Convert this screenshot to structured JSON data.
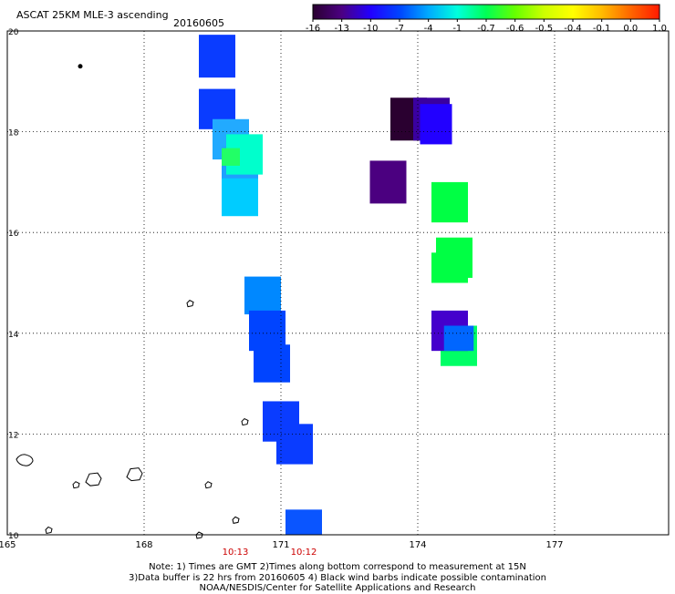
{
  "header": {
    "product_title": "ASCAT 25KM MLE-3 ascending",
    "date": "20160605"
  },
  "colorbar": {
    "colors": [
      "#2a0030",
      "#4b0082",
      "#2200ff",
      "#0044ff",
      "#00aaff",
      "#00ffdd",
      "#00ff55",
      "#66ff00",
      "#ccff00",
      "#ffff00",
      "#ffbb00",
      "#ff6600",
      "#ff1a00"
    ],
    "tick_labels": [
      "-16",
      "-13",
      "-10",
      "-7",
      "-4",
      "-1",
      "-0.7",
      "-0.6",
      "-0.5",
      "-0.4",
      "-0.1",
      "0.0",
      "1.0"
    ]
  },
  "map": {
    "lon_range": [
      165,
      179.5
    ],
    "lat_range": [
      10,
      20
    ],
    "lon_labels": [
      "165",
      "168",
      "171",
      "174",
      "177"
    ],
    "lat_labels": [
      "20",
      "18",
      "16",
      "14",
      "12",
      "10"
    ],
    "time_labels": [
      {
        "text": "10:13",
        "lon": 170.0
      },
      {
        "text": "10:12",
        "lon": 171.5
      }
    ],
    "time_label_color": "#cc0000",
    "cells": [
      {
        "lon": 169.6,
        "lat": 19.5,
        "w": 0.8,
        "h": 0.85,
        "color": "#0a3cff"
      },
      {
        "lon": 169.6,
        "lat": 18.45,
        "w": 0.8,
        "h": 0.8,
        "color": "#0a3cff"
      },
      {
        "lon": 169.9,
        "lat": 17.85,
        "w": 0.8,
        "h": 0.8,
        "color": "#22aaff"
      },
      {
        "lon": 170.1,
        "lat": 17.3,
        "w": 0.8,
        "h": 0.8,
        "color": "#1fa0ff"
      },
      {
        "lon": 170.2,
        "lat": 17.55,
        "w": 0.8,
        "h": 0.8,
        "color": "#00ffcc"
      },
      {
        "lon": 169.9,
        "lat": 17.5,
        "w": 0.4,
        "h": 0.35,
        "color": "#22ff66"
      },
      {
        "lon": 170.1,
        "lat": 16.7,
        "w": 0.8,
        "h": 0.75,
        "color": "#00ccff"
      },
      {
        "lon": 170.6,
        "lat": 14.75,
        "w": 0.8,
        "h": 0.75,
        "color": "#0088ff"
      },
      {
        "lon": 170.7,
        "lat": 14.05,
        "w": 0.8,
        "h": 0.8,
        "color": "#0044ff"
      },
      {
        "lon": 170.8,
        "lat": 13.4,
        "w": 0.8,
        "h": 0.75,
        "color": "#0044ff"
      },
      {
        "lon": 171.0,
        "lat": 12.25,
        "w": 0.8,
        "h": 0.8,
        "color": "#0a3cff"
      },
      {
        "lon": 171.3,
        "lat": 11.8,
        "w": 0.8,
        "h": 0.8,
        "color": "#0a3cff"
      },
      {
        "lon": 171.5,
        "lat": 10.25,
        "w": 0.8,
        "h": 0.5,
        "color": "#0a55ff"
      },
      {
        "lon": 173.8,
        "lat": 18.25,
        "w": 0.8,
        "h": 0.85,
        "color": "#2a0030"
      },
      {
        "lon": 174.3,
        "lat": 18.25,
        "w": 0.8,
        "h": 0.85,
        "color": "#3a00a0"
      },
      {
        "lon": 174.4,
        "lat": 18.15,
        "w": 0.7,
        "h": 0.8,
        "color": "#2200ff"
      },
      {
        "lon": 173.35,
        "lat": 17.0,
        "w": 0.8,
        "h": 0.85,
        "color": "#4b0080"
      },
      {
        "lon": 174.7,
        "lat": 16.6,
        "w": 0.8,
        "h": 0.8,
        "color": "#00ff44"
      },
      {
        "lon": 174.8,
        "lat": 15.5,
        "w": 0.8,
        "h": 0.8,
        "color": "#00ff44"
      },
      {
        "lon": 174.7,
        "lat": 15.3,
        "w": 0.8,
        "h": 0.6,
        "color": "#00ff44"
      },
      {
        "lon": 174.9,
        "lat": 13.75,
        "w": 0.8,
        "h": 0.8,
        "color": "#00ff66"
      },
      {
        "lon": 174.7,
        "lat": 14.05,
        "w": 0.8,
        "h": 0.8,
        "color": "#4400cc"
      },
      {
        "lon": 174.9,
        "lat": 13.9,
        "w": 0.65,
        "h": 0.5,
        "color": "#0066ff"
      }
    ],
    "islands": [
      {
        "lon": 166.6,
        "lat": 19.3,
        "shape": "dot"
      },
      {
        "lon": 165.4,
        "lat": 11.5,
        "shape": "atoll-large"
      },
      {
        "lon": 166.9,
        "lat": 11.1,
        "shape": "atoll"
      },
      {
        "lon": 167.8,
        "lat": 11.2,
        "shape": "atoll"
      },
      {
        "lon": 166.5,
        "lat": 11.0,
        "shape": "small"
      },
      {
        "lon": 169.0,
        "lat": 14.6,
        "shape": "small"
      },
      {
        "lon": 170.2,
        "lat": 12.25,
        "shape": "small"
      },
      {
        "lon": 169.4,
        "lat": 11.0,
        "shape": "small"
      },
      {
        "lon": 170.0,
        "lat": 10.3,
        "shape": "small"
      },
      {
        "lon": 165.9,
        "lat": 10.1,
        "shape": "small"
      },
      {
        "lon": 169.2,
        "lat": 10.0,
        "shape": "small"
      }
    ]
  },
  "footer": {
    "note_line1": "Note: 1) Times are GMT 2)Times along bottom correspond to measurement at 15N",
    "note_line2": "3)Data buffer is 22 hrs from 20160605 4) Black wind barbs indicate possible contamination",
    "note_line3": "NOAA/NESDIS/Center for Satellite Applications and Research"
  }
}
